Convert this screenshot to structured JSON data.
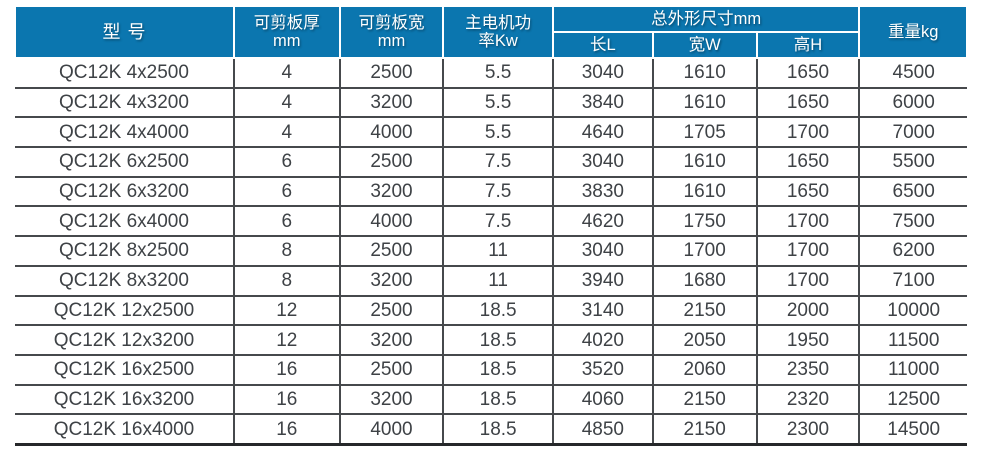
{
  "colors": {
    "header_bg": "#0b76af",
    "header_text": "#ffffff",
    "body_text": "#3e4246",
    "grid_line": "#46494c",
    "bottom_border": "#26282a"
  },
  "table": {
    "header": {
      "model": "型 号",
      "thickness": {
        "line1": "可剪板厚",
        "line2": "mm"
      },
      "width": {
        "line1": "可剪板宽",
        "line2": "mm"
      },
      "power": {
        "line1": "主电机功",
        "line2": "率Kw"
      },
      "dimensions": {
        "group": "总外形尺寸mm",
        "length": "长L",
        "width": "宽W",
        "height": "高H"
      },
      "weight": "重量kg"
    },
    "rows": [
      [
        "QC12K 4x2500",
        "4",
        "2500",
        "5.5",
        "3040",
        "1610",
        "1650",
        "4500"
      ],
      [
        "QC12K 4x3200",
        "4",
        "3200",
        "5.5",
        "3840",
        "1610",
        "1650",
        "6000"
      ],
      [
        "QC12K 4x4000",
        "4",
        "4000",
        "5.5",
        "4640",
        "1705",
        "1700",
        "7000"
      ],
      [
        "QC12K 6x2500",
        "6",
        "2500",
        "7.5",
        "3040",
        "1610",
        "1650",
        "5500"
      ],
      [
        "QC12K 6x3200",
        "6",
        "3200",
        "7.5",
        "3830",
        "1610",
        "1650",
        "6500"
      ],
      [
        "QC12K 6x4000",
        "6",
        "4000",
        "7.5",
        "4620",
        "1750",
        "1700",
        "7500"
      ],
      [
        "QC12K 8x2500",
        "8",
        "2500",
        "11",
        "3040",
        "1700",
        "1700",
        "6200"
      ],
      [
        "QC12K 8x3200",
        "8",
        "3200",
        "11",
        "3940",
        "1680",
        "1700",
        "7100"
      ],
      [
        "QC12K 12x2500",
        "12",
        "2500",
        "18.5",
        "3140",
        "2150",
        "2000",
        "10000"
      ],
      [
        "QC12K 12x3200",
        "12",
        "3200",
        "18.5",
        "4020",
        "2050",
        "1950",
        "11500"
      ],
      [
        "QC12K 16x2500",
        "16",
        "2500",
        "18.5",
        "3520",
        "2060",
        "2350",
        "11000"
      ],
      [
        "QC12K 16x3200",
        "16",
        "3200",
        "18.5",
        "4060",
        "2150",
        "2320",
        "12500"
      ],
      [
        "QC12K 16x4000",
        "16",
        "4000",
        "18.5",
        "4850",
        "2150",
        "2300",
        "14500"
      ]
    ]
  }
}
